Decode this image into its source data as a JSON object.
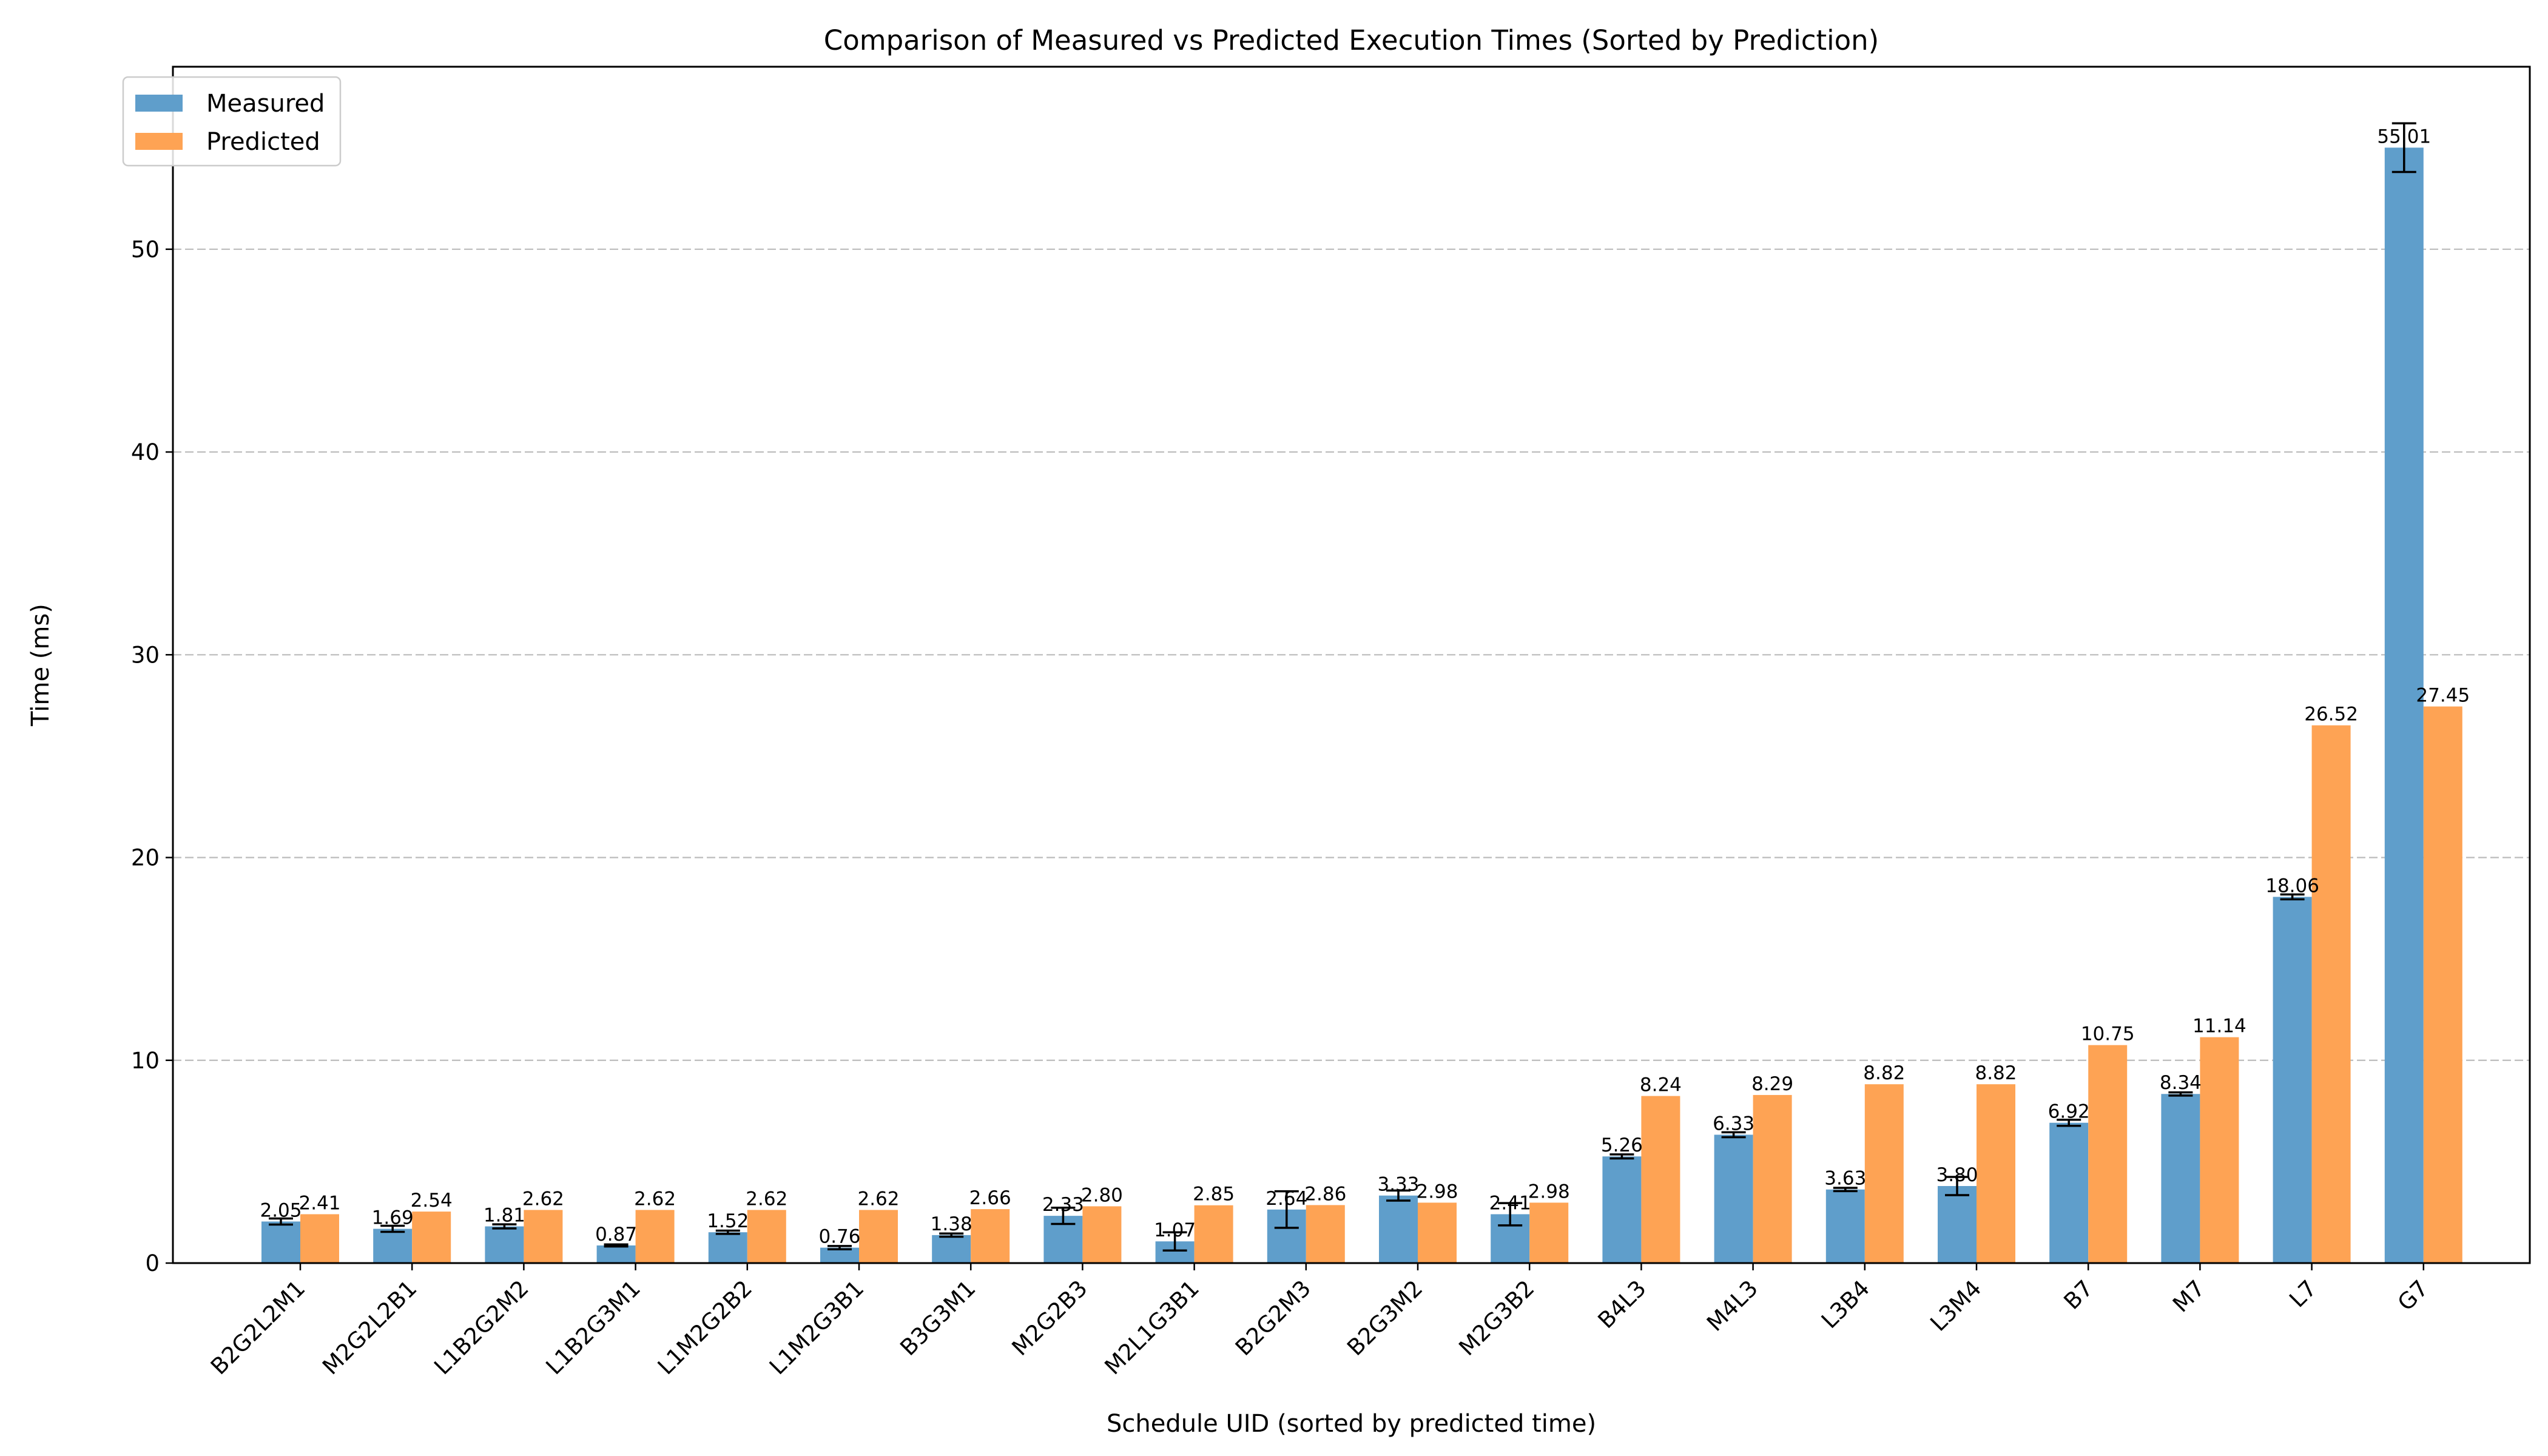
{
  "chart_data": {
    "type": "bar",
    "title": "Comparison of Measured vs Predicted Execution Times (Sorted by Prediction)",
    "xlabel": "Schedule UID (sorted by predicted time)",
    "ylabel": "Time (ms)",
    "ylim": [
      0,
      59
    ],
    "yticks": [
      0,
      10,
      20,
      30,
      40,
      50
    ],
    "grid": "y-dashed",
    "legend": "top-left",
    "categories": [
      "B2G2L2M1",
      "M2G2L2B1",
      "L1B2G2M2",
      "L1B2G3M1",
      "L1M2G2B2",
      "L1M2G3B1",
      "B3G3M1",
      "M2G2B3",
      "M2L1G3B1",
      "B2G2M3",
      "B2G3M2",
      "M2G3B2",
      "B4L3",
      "M4L3",
      "L3B4",
      "L3M4",
      "B7",
      "M7",
      "L7",
      "G7"
    ],
    "series": [
      {
        "name": "Measured",
        "color": "#5f9ecb",
        "values": [
          2.05,
          1.69,
          1.81,
          0.87,
          1.52,
          0.76,
          1.38,
          2.33,
          1.07,
          2.64,
          3.33,
          2.41,
          5.26,
          6.33,
          3.63,
          3.8,
          6.92,
          8.34,
          18.06,
          55.01
        ],
        "labels": [
          "2.05",
          "1.69",
          "1.81",
          "0.87",
          "1.52",
          "0.76",
          "1.38",
          "2.33",
          "1.07",
          "2.64",
          "3.33",
          "2.41",
          "5.26",
          "6.33",
          "3.63",
          "3.80",
          "6.92",
          "8.34",
          "18.06",
          "55.01"
        ],
        "errors": [
          0.15,
          0.15,
          0.1,
          0.05,
          0.08,
          0.08,
          0.08,
          0.4,
          0.45,
          0.9,
          0.25,
          0.55,
          0.1,
          0.12,
          0.08,
          0.45,
          0.15,
          0.08,
          0.12,
          1.2
        ]
      },
      {
        "name": "Predicted",
        "color": "#fea354",
        "values": [
          2.41,
          2.54,
          2.62,
          2.62,
          2.62,
          2.62,
          2.66,
          2.8,
          2.85,
          2.86,
          2.98,
          2.98,
          8.24,
          8.29,
          8.82,
          8.82,
          10.75,
          11.14,
          26.52,
          27.45
        ],
        "labels": [
          "2.41",
          "2.54",
          "2.62",
          "2.62",
          "2.62",
          "2.62",
          "2.66",
          "2.80",
          "2.85",
          "2.86",
          "2.98",
          "2.98",
          "8.24",
          "8.29",
          "8.82",
          "8.82",
          "10.75",
          "11.14",
          "26.52",
          "27.45"
        ]
      }
    ]
  }
}
